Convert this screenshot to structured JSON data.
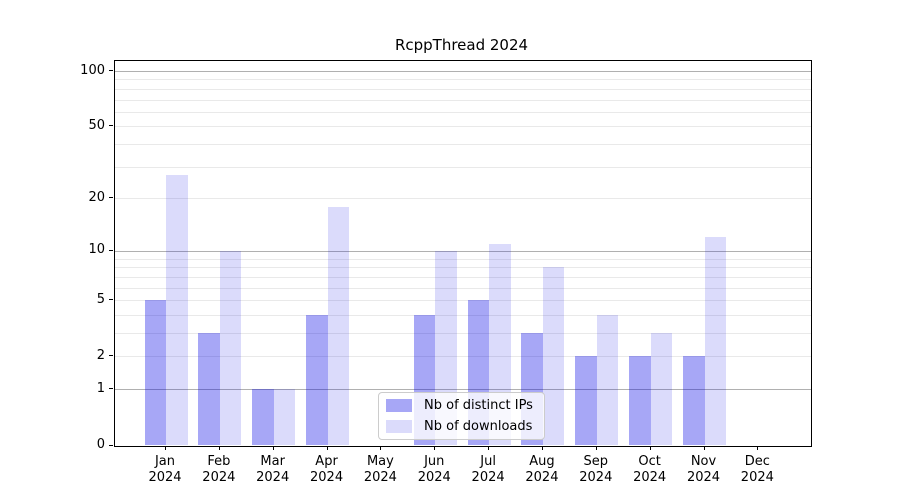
{
  "chart_data": {
    "type": "bar",
    "title": "RcppThread 2024",
    "categories": [
      {
        "month": "Jan",
        "year": "2024"
      },
      {
        "month": "Feb",
        "year": "2024"
      },
      {
        "month": "Mar",
        "year": "2024"
      },
      {
        "month": "Apr",
        "year": "2024"
      },
      {
        "month": "May",
        "year": "2024"
      },
      {
        "month": "Jun",
        "year": "2024"
      },
      {
        "month": "Jul",
        "year": "2024"
      },
      {
        "month": "Aug",
        "year": "2024"
      },
      {
        "month": "Sep",
        "year": "2024"
      },
      {
        "month": "Oct",
        "year": "2024"
      },
      {
        "month": "Nov",
        "year": "2024"
      },
      {
        "month": "Dec",
        "year": "2024"
      }
    ],
    "series": [
      {
        "name": "Nb of distinct IPs",
        "color": "#a8a8f6",
        "fill_rgba": "rgba(0,0,230,0.345)",
        "values": [
          5,
          3,
          1,
          4,
          0,
          4,
          5,
          3,
          2,
          2,
          2,
          0
        ]
      },
      {
        "name": "Nb of downloads",
        "color": "#dcdcf9",
        "fill_rgba": "rgba(0,0,230,0.14)",
        "values": [
          27,
          10,
          1,
          18,
          0,
          10,
          11,
          8,
          4,
          3,
          12,
          0
        ]
      }
    ],
    "xlabel": "",
    "ylabel": "",
    "y_axis": {
      "scale": "log1p",
      "lim": [
        0,
        114
      ],
      "tick_values": [
        0,
        1,
        2,
        5,
        10,
        20,
        50,
        100
      ],
      "major_gridlines": [
        1,
        10,
        100
      ],
      "minor_gridlines": [
        2,
        3,
        4,
        5,
        6,
        7,
        8,
        9,
        20,
        30,
        40,
        50,
        60,
        70,
        80,
        90
      ],
      "major_grid_color": "#b0b0b0",
      "minor_grid_color": "#e9e9e9"
    },
    "legend": {
      "position": "lower center"
    }
  }
}
